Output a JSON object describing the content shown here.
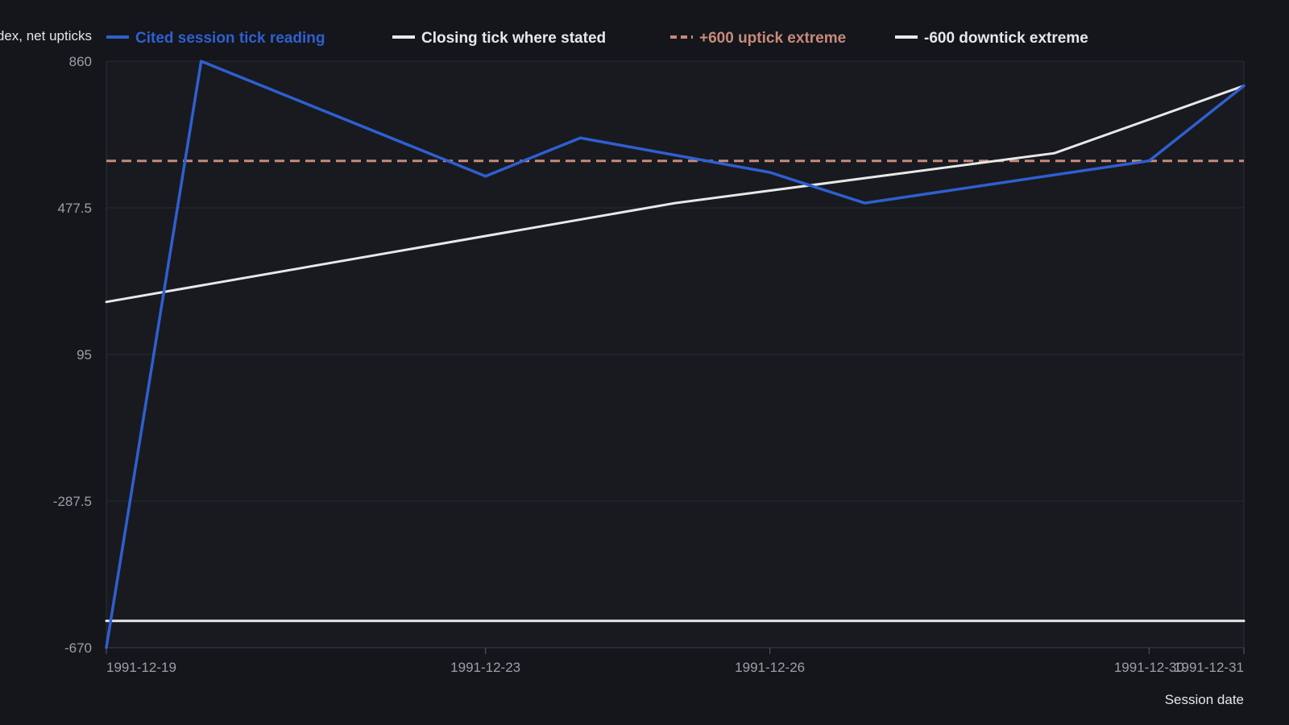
{
  "chart_data": {
    "type": "line",
    "ylabel": "Index, net upticks",
    "xlabel": "Session date",
    "ylim": [
      -670,
      860
    ],
    "y_ticks": [
      "860",
      "477.5",
      "95",
      "-287.5",
      "-670"
    ],
    "y_tick_values": [
      860,
      477.5,
      95,
      -287.5,
      -670
    ],
    "x_ticks": [
      "1991-12-19",
      "1991-12-23",
      "1991-12-26",
      "1991-12-30",
      "1991-12-31"
    ],
    "x_tick_values": [
      "1991-12-19",
      "1991-12-23",
      "1991-12-26",
      "1991-12-30",
      "1991-12-31"
    ],
    "xlim": [
      "1991-12-19",
      "1991-12-31"
    ],
    "grid": true,
    "legend_position": "top",
    "series": [
      {
        "name": "Cited session tick reading",
        "color": "#2f5fd0",
        "style": "solid",
        "x": [
          "1991-12-19",
          "1991-12-20",
          "1991-12-23",
          "1991-12-24",
          "1991-12-26",
          "1991-12-27",
          "1991-12-30",
          "1991-12-31"
        ],
        "values": [
          -670,
          860,
          560,
          660,
          570,
          490,
          600,
          796
        ]
      },
      {
        "name": "Closing tick where stated",
        "color": "#e8e8e8",
        "style": "solid",
        "x": [
          "1991-12-19",
          "1991-12-25",
          "1991-12-29",
          "1991-12-31"
        ],
        "values": [
          232,
          490,
          620,
          796
        ]
      },
      {
        "name": "+600 uptick extreme",
        "color": "#c88a7a",
        "style": "dashed",
        "x": [
          "1991-12-19",
          "1991-12-31"
        ],
        "values": [
          600,
          600
        ]
      },
      {
        "name": "-600 downtick extreme",
        "color": "#e8e8e8",
        "style": "solid",
        "x": [
          "1991-12-19",
          "1991-12-31"
        ],
        "values": [
          -600,
          -600
        ]
      }
    ]
  }
}
